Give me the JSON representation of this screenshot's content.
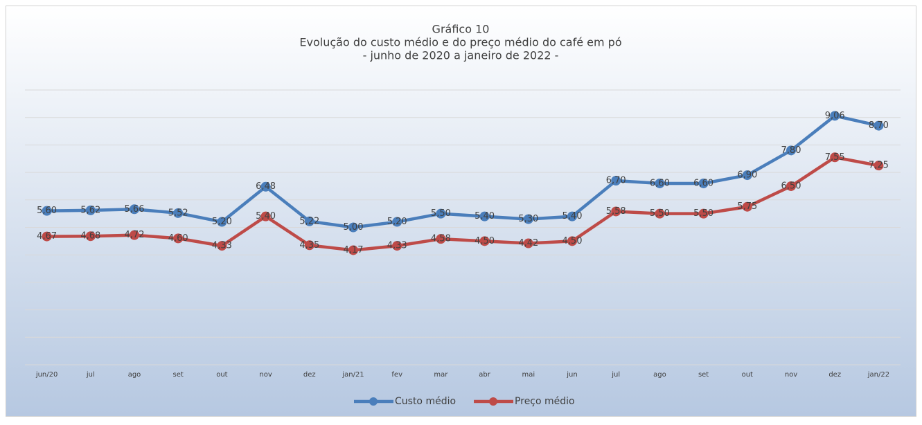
{
  "chart_data": {
    "type": "line",
    "title": "Gráfico 10",
    "subtitle": [
      "Evolução do custo médio e do preço médio do café em pó",
      "- junho de 2020 a janeiro de 2022 -"
    ],
    "categories": [
      "jun/20",
      "jul",
      "ago",
      "set",
      "out",
      "nov",
      "dez",
      "jan/21",
      "fev",
      "mar",
      "abr",
      "mai",
      "jun",
      "jul",
      "ago",
      "set",
      "out",
      "nov",
      "dez",
      "jan/22"
    ],
    "series": [
      {
        "name": "Custo médio",
        "color": "#4a7ebb",
        "values": [
          5.6,
          5.62,
          5.66,
          5.52,
          5.2,
          6.48,
          5.22,
          5.0,
          5.2,
          5.5,
          5.4,
          5.3,
          5.4,
          6.7,
          6.6,
          6.6,
          6.9,
          7.8,
          9.06,
          8.7
        ],
        "value_labels": [
          "5,60",
          "5,62",
          "5,66",
          "5,52",
          "5,20",
          "6,48",
          "5,22",
          "5,00",
          "5,20",
          "5,50",
          "5,40",
          "5,30",
          "5,40",
          "6,70",
          "6,60",
          "6,60",
          "6,90",
          "7,80",
          "9,06",
          "8,70"
        ]
      },
      {
        "name": "Preço médio",
        "color": "#be4b48",
        "values": [
          4.67,
          4.68,
          4.72,
          4.6,
          4.33,
          5.4,
          4.35,
          4.17,
          4.33,
          4.58,
          4.5,
          4.42,
          4.5,
          5.58,
          5.5,
          5.5,
          5.75,
          6.5,
          7.55,
          7.25
        ],
        "value_labels": [
          "4,67",
          "4,68",
          "4,72",
          "4,60",
          "4,33",
          "5,40",
          "4,35",
          "4,17",
          "4,33",
          "4,58",
          "4,50",
          "4,42",
          "4,50",
          "5,58",
          "5,50",
          "5,50",
          "5,75",
          "6,50",
          "7,55",
          "7,25"
        ]
      }
    ],
    "ylim": [
      0,
      10
    ],
    "yticks": [
      0,
      1,
      2,
      3,
      4,
      5,
      6,
      7,
      8,
      9,
      10
    ],
    "grid": true,
    "legend": "bottom"
  }
}
